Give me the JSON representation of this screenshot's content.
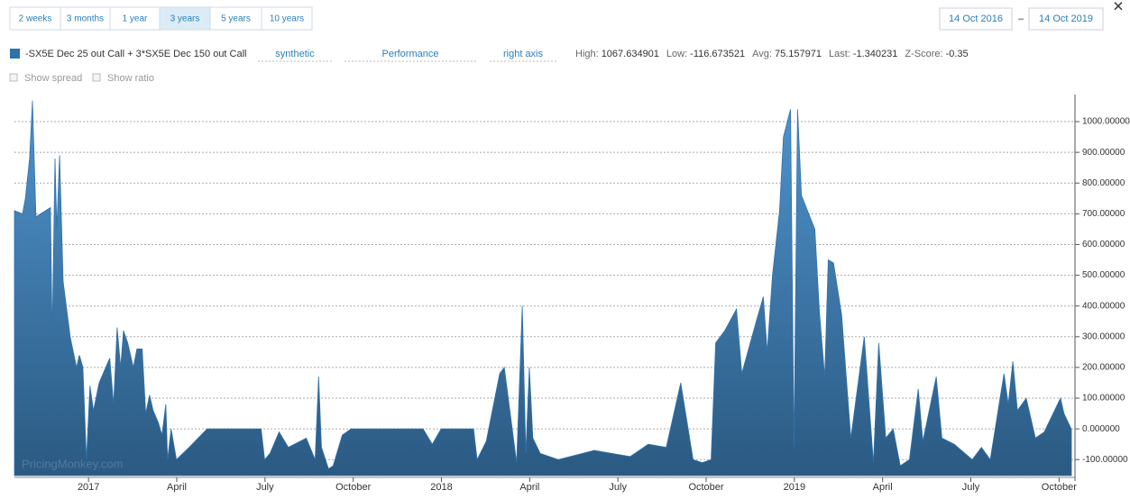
{
  "ui": {
    "range_buttons": [
      "2 weeks",
      "3 months",
      "1 year",
      "3 years",
      "5 years",
      "10 years"
    ],
    "active_range": 3,
    "date_from": "14 Oct 2016",
    "date_sep": "–",
    "date_to": "14 Oct 2019",
    "close": "×",
    "links": [
      "synthetic",
      "Performance",
      "right axis"
    ],
    "stats": [
      {
        "label": "High:",
        "value": "1067.634901"
      },
      {
        "label": "Low:",
        "value": "-116.673521"
      },
      {
        "label": "Avg:",
        "value": "75.157971"
      },
      {
        "label": "Last:",
        "value": "-1.340231"
      },
      {
        "label": "Z-Score:",
        "value": "-0.35"
      }
    ],
    "checkboxes": [
      "Show spread",
      "Show ratio"
    ],
    "watermark": "PricingMonkey.com"
  },
  "chart_data": {
    "type": "area",
    "series": [
      {
        "name": "-SX5E Dec 25 out Call + 3*SX5E Dec 150 out Call",
        "color": "#2f72ad",
        "x": [
          2016.79,
          2016.813,
          2016.821,
          2016.833,
          2016.841,
          2016.851,
          2016.892,
          2016.897,
          2016.905,
          2016.91,
          2016.918,
          2016.928,
          2016.948,
          2016.966,
          2016.974,
          2016.984,
          2016.994,
          2017.004,
          2017.014,
          2017.03,
          2017.06,
          2017.071,
          2017.081,
          2017.091,
          2017.099,
          2017.111,
          2017.127,
          2017.137,
          2017.152,
          2017.162,
          2017.173,
          2017.183,
          2017.198,
          2017.208,
          2017.219,
          2017.224,
          2017.234,
          2017.249,
          2017.285,
          2017.336,
          2017.489,
          2017.499,
          2017.514,
          2017.54,
          2017.566,
          2017.617,
          2017.642,
          2017.652,
          2017.66,
          2017.68,
          2017.693,
          2017.719,
          2017.744,
          2017.821,
          2017.948,
          2017.974,
          2017.999,
          2018.091,
          2018.101,
          2018.127,
          2018.165,
          2018.178,
          2018.213,
          2018.229,
          2018.239,
          2018.249,
          2018.259,
          2018.28,
          2018.331,
          2018.433,
          2018.535,
          2018.586,
          2018.637,
          2018.678,
          2018.713,
          2018.739,
          2018.764,
          2018.777,
          2018.803,
          2018.836,
          2018.851,
          2018.892,
          2018.912,
          2018.923,
          2018.938,
          2018.958,
          2018.969,
          2018.989,
          2018.999,
          2019.009,
          2019.02,
          2019.058,
          2019.071,
          2019.086,
          2019.096,
          2019.111,
          2019.134,
          2019.16,
          2019.198,
          2019.224,
          2019.239,
          2019.259,
          2019.28,
          2019.3,
          2019.326,
          2019.351,
          2019.364,
          2019.402,
          2019.418,
          2019.453,
          2019.504,
          2019.53,
          2019.555,
          2019.594,
          2019.606,
          2019.619,
          2019.632,
          2019.657,
          2019.683,
          2019.708,
          2019.754,
          2019.764,
          2019.785
        ],
        "values": [
          710,
          700,
          750,
          880,
          1068,
          690,
          720,
          300,
          880,
          650,
          890,
          480,
          300,
          200,
          240,
          200,
          -100,
          140,
          60,
          150,
          230,
          80,
          330,
          200,
          320,
          280,
          200,
          260,
          260,
          50,
          110,
          60,
          20,
          -20,
          80,
          -100,
          0,
          -100,
          -60,
          0,
          0,
          -100,
          -80,
          -10,
          -60,
          -30,
          -100,
          170,
          -60,
          -130,
          -120,
          -20,
          0,
          0,
          0,
          -50,
          0,
          0,
          -100,
          -40,
          180,
          200,
          -110,
          400,
          -80,
          200,
          -30,
          -80,
          -100,
          -70,
          -90,
          -50,
          -60,
          150,
          -100,
          -110,
          -100,
          280,
          320,
          390,
          180,
          350,
          430,
          250,
          500,
          710,
          950,
          1040,
          -60,
          1040,
          760,
          650,
          380,
          170,
          550,
          540,
          370,
          -30,
          300,
          -110,
          280,
          -30,
          0,
          -120,
          -100,
          130,
          -40,
          170,
          -30,
          -50,
          -100,
          -60,
          -100,
          180,
          80,
          220,
          60,
          100,
          -30,
          -10,
          100,
          50,
          -1.34
        ]
      }
    ],
    "xlim": [
      2016.79,
      2019.79
    ],
    "xticks": [
      {
        "value": 2017,
        "label": "2017"
      },
      {
        "value": 2017.25,
        "label": "April"
      },
      {
        "value": 2017.5,
        "label": "July"
      },
      {
        "value": 2017.75,
        "label": "October"
      },
      {
        "value": 2018,
        "label": "2018"
      },
      {
        "value": 2018.25,
        "label": "April"
      },
      {
        "value": 2018.5,
        "label": "July"
      },
      {
        "value": 2018.75,
        "label": "October"
      },
      {
        "value": 2019,
        "label": "2019"
      },
      {
        "value": 2019.25,
        "label": "April"
      },
      {
        "value": 2019.5,
        "label": "July"
      },
      {
        "value": 2019.75,
        "label": "October"
      }
    ],
    "ylim": [
      -152,
      1088
    ],
    "yticks": [
      {
        "value": -100,
        "label": "-100.00000"
      },
      {
        "value": 0,
        "label": "0.000000"
      },
      {
        "value": 100,
        "label": "100.00000"
      },
      {
        "value": 200,
        "label": "200.00000"
      },
      {
        "value": 300,
        "label": "300.00000"
      },
      {
        "value": 400,
        "label": "400.00000"
      },
      {
        "value": 500,
        "label": "500.00000"
      },
      {
        "value": 600,
        "label": "600.00000"
      },
      {
        "value": 700,
        "label": "700.00000"
      },
      {
        "value": 800,
        "label": "800.00000"
      },
      {
        "value": 900,
        "label": "900.00000"
      },
      {
        "value": 1000,
        "label": "1000.00000"
      }
    ],
    "grid": true,
    "y_axis_side": "right"
  }
}
